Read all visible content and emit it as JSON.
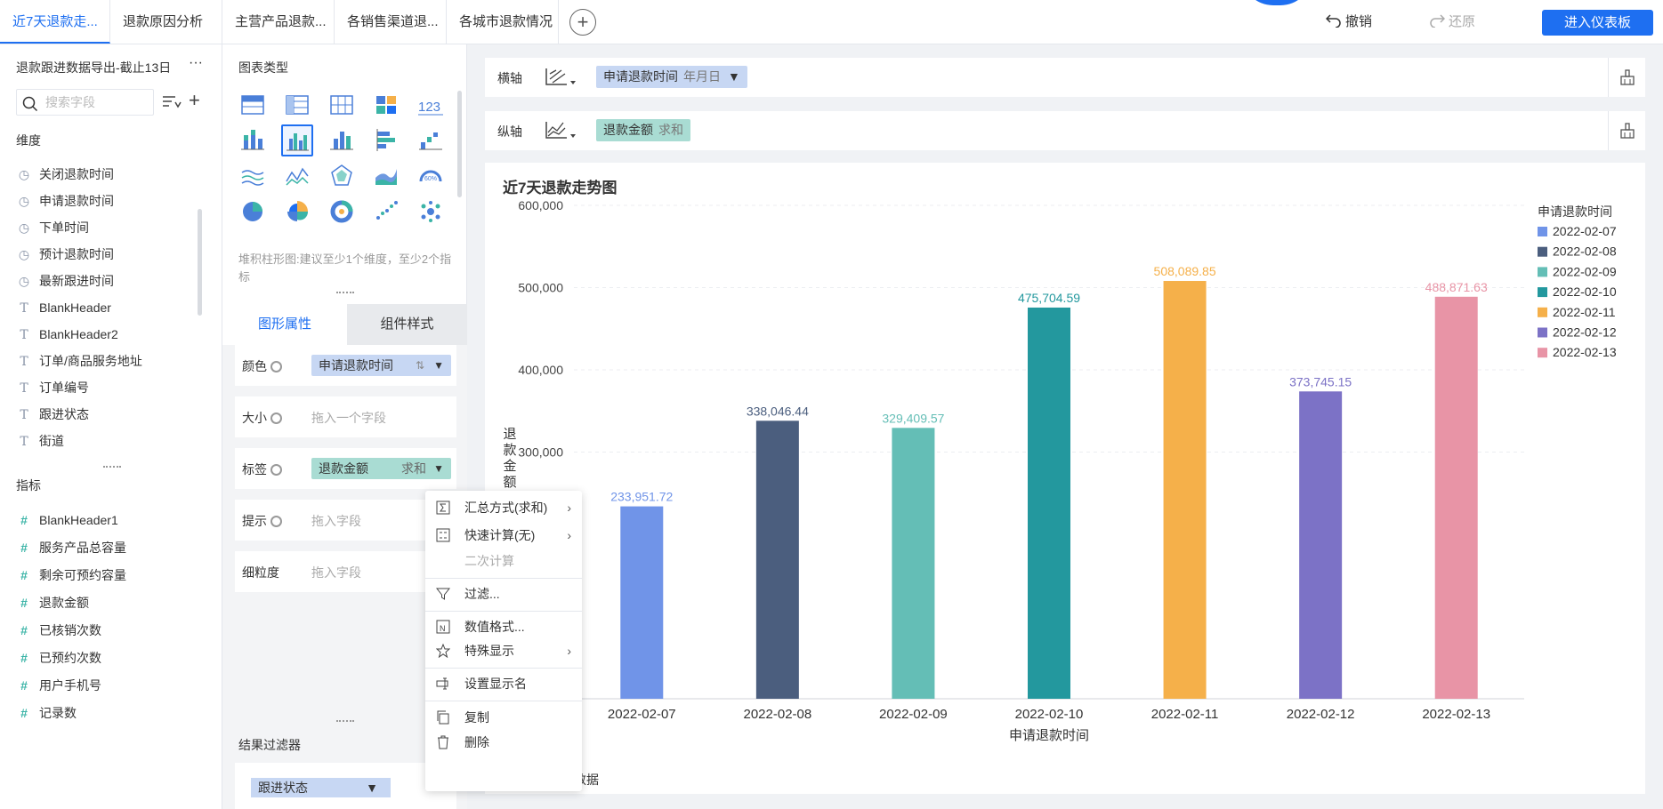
{
  "tabs": [
    {
      "label": "近7天退款走..."
    },
    {
      "label": "退款原因分析"
    },
    {
      "label": "主营产品退款..."
    },
    {
      "label": "各销售渠道退..."
    },
    {
      "label": "各城市退款情况"
    }
  ],
  "toolbar": {
    "undo": "撤销",
    "redo": "还原",
    "enter": "进入仪表板"
  },
  "left": {
    "dataset_title": "退款跟进数据导出-截止13日",
    "more": "···",
    "search_placeholder": "搜索字段",
    "dimension_title": "维度",
    "dimensions": [
      {
        "label": "关闭退款时间",
        "type": "time"
      },
      {
        "label": "申请退款时间",
        "type": "time"
      },
      {
        "label": "下单时间",
        "type": "time"
      },
      {
        "label": "预计退款时间",
        "type": "time"
      },
      {
        "label": "最新跟进时间",
        "type": "time"
      },
      {
        "label": "BlankHeader",
        "type": "text"
      },
      {
        "label": "BlankHeader2",
        "type": "text"
      },
      {
        "label": "订单/商品服务地址",
        "type": "text"
      },
      {
        "label": "订单编号",
        "type": "text"
      },
      {
        "label": "跟进状态",
        "type": "text"
      },
      {
        "label": "街道",
        "type": "text"
      }
    ],
    "measure_title": "指标",
    "measures": [
      {
        "label": "BlankHeader1"
      },
      {
        "label": "服务产品总容量"
      },
      {
        "label": "剩余可预约容量"
      },
      {
        "label": "退款金额"
      },
      {
        "label": "已核销次数"
      },
      {
        "label": "已预约次数"
      },
      {
        "label": "用户手机号"
      },
      {
        "label": "记录数"
      }
    ]
  },
  "middle": {
    "chart_type_title": "图表类型",
    "hint": "堆积柱形图:建议至少1个维度，至少2个指标",
    "tab_graph": "图形属性",
    "tab_style": "组件样式",
    "props": {
      "color_label": "颜色",
      "color_field": "申请退款时间",
      "size_label": "大小",
      "size_placeholder": "拖入一个字段",
      "tag_label": "标签",
      "tag_field": "退款金额",
      "tag_agg": "求和",
      "tip_label": "提示",
      "tip_placeholder": "拖入字段",
      "gran_label": "细粒度",
      "gran_placeholder": "拖入字段"
    },
    "result_filter_title": "结果过滤器",
    "result_filter_field": "跟进状态"
  },
  "axes": {
    "x_label": "横轴",
    "x_field": "申请退款时间",
    "x_sub": "年月日",
    "y_label": "纵轴",
    "y_field": "退款金额",
    "y_sub": "求和"
  },
  "chart_title": "近7天退款走势图",
  "footer_text": "数据",
  "context_menu": {
    "summary": "汇总方式(求和)",
    "quick_calc": "快速计算(无)",
    "secondary": "二次计算",
    "filter": "过滤...",
    "number_format": "数值格式...",
    "special": "特殊显示",
    "display_name": "设置显示名",
    "copy": "复制",
    "delete": "删除"
  },
  "chart_data": {
    "type": "bar",
    "categories": [
      "2022-02-07",
      "2022-02-08",
      "2022-02-09",
      "2022-02-10",
      "2022-02-11",
      "2022-02-12",
      "2022-02-13"
    ],
    "values": [
      233951.72,
      338046.44,
      329409.57,
      475704.59,
      508089.85,
      373745.15,
      488871.63
    ],
    "value_labels": [
      "233,951.72",
      "338,046.44",
      "329,409.57",
      "475,704.59",
      "508,089.85",
      "373,745.15",
      "488,871.63"
    ],
    "colors": [
      "#7094e8",
      "#4b5e7e",
      "#64beb6",
      "#23989e",
      "#f5b04a",
      "#7c72c6",
      "#e894a6"
    ],
    "xlabel": "申请退款时间",
    "ylabel": "退款金额",
    "ylim": [
      0,
      600000
    ],
    "y_ticks": [
      300000,
      400000,
      500000,
      600000
    ],
    "y_tick_labels": [
      "300,000",
      "400,000",
      "500,000",
      "600,000"
    ],
    "legend_title": "申请退款时间",
    "legend_position": "top-right",
    "grid": true
  }
}
